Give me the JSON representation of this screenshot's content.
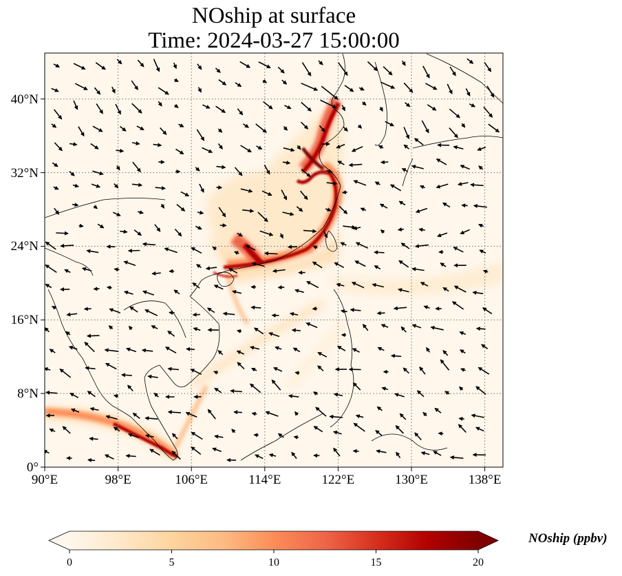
{
  "title": {
    "line1": "NOship at surface",
    "line2": "Time: 2024-03-27 15:00:00"
  },
  "map": {
    "lon_range": [
      90,
      140
    ],
    "lat_range": [
      0,
      45
    ],
    "lon_ticks": [
      "90°E",
      "98°E",
      "106°E",
      "114°E",
      "122°E",
      "130°E",
      "138°E"
    ],
    "lat_ticks": [
      "0°",
      "8°N",
      "16°N",
      "24°N",
      "32°N",
      "40°N"
    ],
    "gridlines": true,
    "features": [
      "coastlines",
      "country borders",
      "wind vectors",
      "shaded NOship concentration"
    ]
  },
  "colorbar": {
    "label": "NOship (ppbv)",
    "ticks": [
      "0",
      "5",
      "10",
      "15",
      "20"
    ],
    "min": 0,
    "max": 20,
    "extend": "both",
    "colormap": "OrRd",
    "colors": [
      "#fff7ec",
      "#fee8c8",
      "#fdd49e",
      "#fdbb84",
      "#fc8d59",
      "#ef6548",
      "#d7301f",
      "#b30000",
      "#7f0000"
    ]
  }
}
